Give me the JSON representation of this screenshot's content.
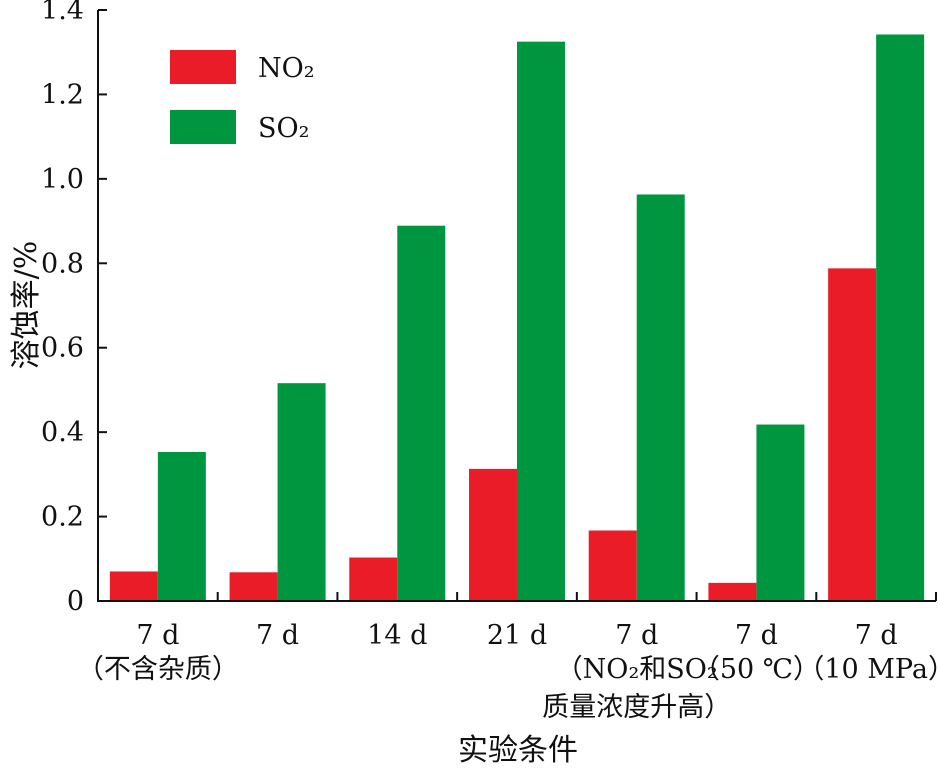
{
  "chart_data": {
    "type": "bar",
    "title": "",
    "xlabel": "实验条件",
    "ylabel": "溶蚀率/%",
    "ylim": [
      0,
      1.4
    ],
    "yticks": [
      "0",
      "0.2",
      "0.4",
      "0.6",
      "0.8",
      "1.0",
      "1.2",
      "1.4"
    ],
    "legend_position": "top-left",
    "categories": [
      {
        "line1": "7 d",
        "line2": "（不含杂质）",
        "line3": ""
      },
      {
        "line1": "7 d",
        "line2": "",
        "line3": ""
      },
      {
        "line1": "14 d",
        "line2": "",
        "line3": ""
      },
      {
        "line1": "21 d",
        "line2": "",
        "line3": ""
      },
      {
        "line1": "7 d",
        "line2": "（NO₂和SO₂",
        "line3": "质量浓度升高）"
      },
      {
        "line1": "7 d",
        "line2": "（50 ℃）",
        "line3": ""
      },
      {
        "line1": "7 d",
        "line2": "（10 MPa）",
        "line3": ""
      }
    ],
    "series": [
      {
        "name": "NO₂",
        "color": "#ea1c27",
        "values": [
          0.07,
          0.068,
          0.103,
          0.313,
          0.167,
          0.043,
          0.788
        ]
      },
      {
        "name": "SO₂",
        "color": "#00963f",
        "values": [
          0.353,
          0.516,
          0.889,
          1.325,
          0.963,
          0.418,
          1.342
        ]
      }
    ]
  }
}
